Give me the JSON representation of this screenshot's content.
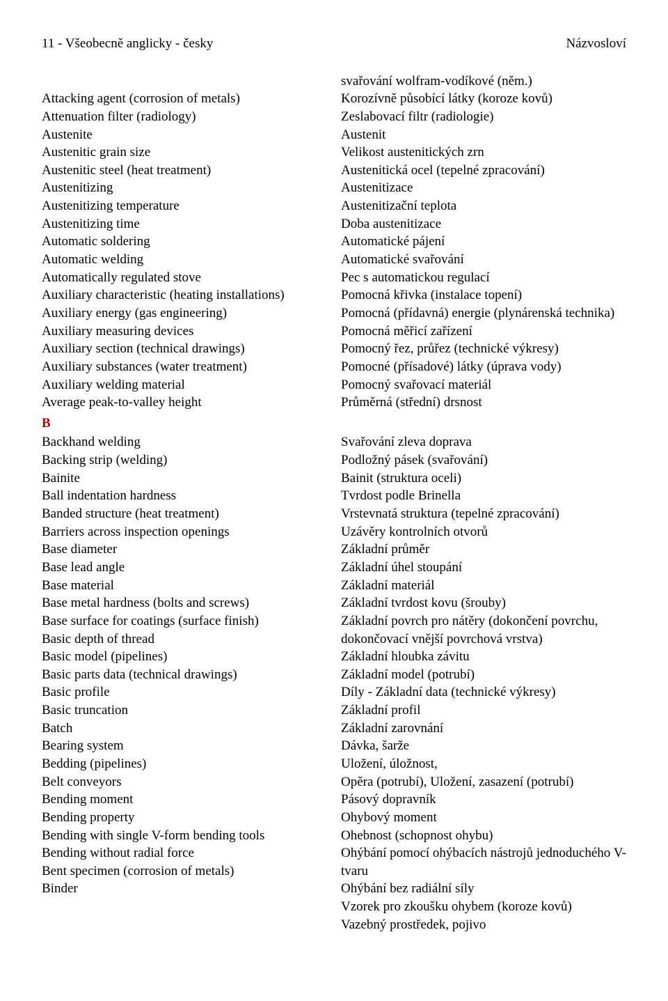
{
  "header": {
    "left": "11 - Všeobecně anglicky - česky",
    "right": "Názvosloví"
  },
  "leadRight": "svařování wolfram-vodíkové (něm.)",
  "rows": [
    {
      "en": "Attacking agent (corrosion of metals)",
      "cs": "Korozívně působící látky (koroze kovů)"
    },
    {
      "en": "Attenuation filter (radiology)",
      "cs": "Zeslabovací filtr (radiologie)"
    },
    {
      "en": "Austenite",
      "cs": "Austenit"
    },
    {
      "en": "Austenitic grain size",
      "cs": "Velikost austenitických zrn"
    },
    {
      "en": "Austenitic steel (heat treatment)",
      "cs": "Austenitická ocel (tepelné zpracování)"
    },
    {
      "en": "Austenitizing",
      "cs": "Austenitizace"
    },
    {
      "en": "Austenitizing temperature",
      "cs": "Austenitizační teplota"
    },
    {
      "en": "Austenitizing time",
      "cs": "Doba austenitizace"
    },
    {
      "en": "Automatic soldering",
      "cs": "Automatické pájení"
    },
    {
      "en": "Automatic welding",
      "cs": "Automatické svařování"
    },
    {
      "en": "Automatically regulated stove",
      "cs": "Pec s automatickou regulací"
    },
    {
      "en": "Auxiliary characteristic (heating installations)",
      "cs": "Pomocná křivka (instalace topení)"
    },
    {
      "en": "Auxiliary energy (gas engineering)",
      "cs": "Pomocná (přídavná) energie (plynárenská technika)"
    },
    {
      "en": "Auxiliary measuring devices",
      "cs": "Pomocná měřicí zařízení"
    },
    {
      "en": "Auxiliary section (technical drawings)",
      "cs": "Pomocný řez, průřez (technické výkresy)"
    },
    {
      "en": "Auxiliary substances (water treatment)",
      "cs": "Pomocné (přísadové) látky (úprava vody)"
    },
    {
      "en": "Auxiliary welding material",
      "cs": "Pomocný svařovací materiál"
    },
    {
      "en": "Average peak-to-valley height",
      "cs": "Průměrná (střední) drsnost"
    }
  ],
  "sectionB": "B",
  "rowsB": [
    {
      "en": "Backhand welding",
      "cs": "Svařování zleva doprava"
    },
    {
      "en": "Backing strip (welding)",
      "cs": "Podložný pásek (svařování)"
    },
    {
      "en": "Bainite",
      "cs": "Bainit (struktura oceli)"
    },
    {
      "en": "Ball indentation hardness",
      "cs": "Tvrdost podle Brinella"
    },
    {
      "en": "Banded structure (heat treatment)",
      "cs": "Vrstevnatá struktura (tepelné zpracování)"
    },
    {
      "en": "Barriers across inspection openings",
      "cs": "Uzávěry kontrolních otvorů"
    },
    {
      "en": "Base diameter",
      "cs": "Základní průměr"
    },
    {
      "en": "Base lead angle",
      "cs": "Základní úhel stoupání"
    },
    {
      "en": "Base material",
      "cs": "Základní materiál"
    },
    {
      "en": "Base metal hardness (bolts and screws)",
      "cs": "Základní tvrdost kovu (šrouby)"
    },
    {
      "en": "Base surface for coatings (surface finish)",
      "cs": "Základní povrch pro nátěry (dokončení povrchu, dokončovací vnější povrchová vrstva)"
    },
    {
      "en": "Basic depth of thread",
      "cs": "Základní hloubka závitu"
    },
    {
      "en": "Basic model (pipelines)",
      "cs": "Základní model (potrubí)"
    },
    {
      "en": "Basic parts data (technical drawings)",
      "cs": "Díly - Základní data (technické výkresy)"
    },
    {
      "en": "Basic profile",
      "cs": "Základní profil"
    },
    {
      "en": "Basic truncation",
      "cs": "Základní zarovnání"
    },
    {
      "en": "Batch",
      "cs": "Dávka, šarže"
    },
    {
      "en": "Bearing system",
      "cs": "Uložení, úložnost,"
    },
    {
      "en": "Bedding (pipelines)",
      "cs": "Opěra (potrubí), Uložení, zasazení (potrubí)"
    },
    {
      "en": "Belt conveyors",
      "cs": "Pásový dopravník"
    },
    {
      "en": "Bending moment",
      "cs": "Ohybový moment"
    },
    {
      "en": "Bending property",
      "cs": "Ohebnost (schopnost ohybu)"
    },
    {
      "en": "Bending with single V-form bending tools",
      "cs": "Ohýbání pomocí ohýbacích nástrojů jednoduchého V-tvaru"
    },
    {
      "en": "Bending without radial force",
      "cs": "Ohýbání bez radiální síly"
    },
    {
      "en": "Bent specimen (corrosion of metals)",
      "cs": "Vzorek pro zkoušku ohybem (koroze kovů)"
    },
    {
      "en": "Binder",
      "cs": "Vazebný prostředek, pojivo"
    }
  ]
}
